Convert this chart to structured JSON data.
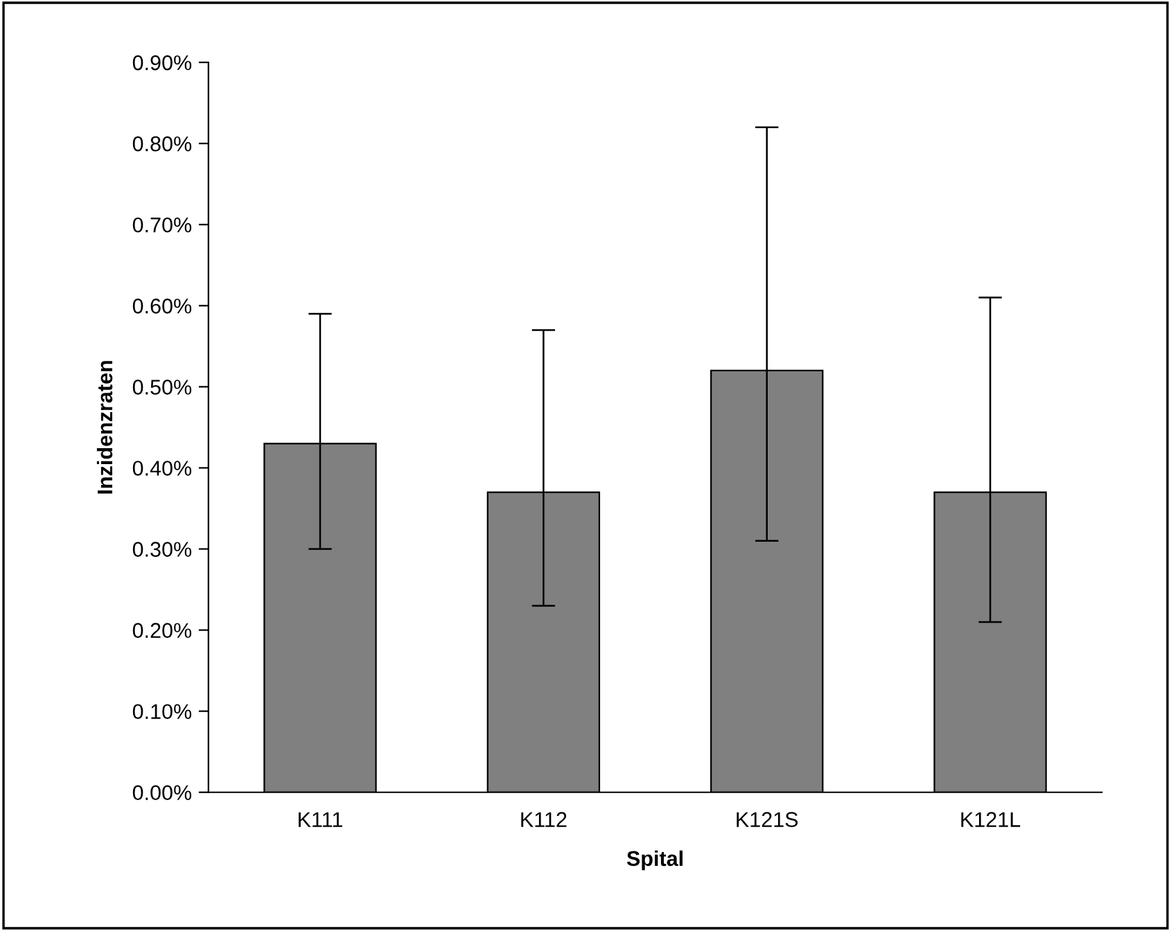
{
  "chart_data": {
    "type": "bar",
    "xlabel": "Spital",
    "ylabel": "Inzidenzraten",
    "categories": [
      "K111",
      "K112",
      "K121S",
      "K121L"
    ],
    "values": [
      0.43,
      0.37,
      0.52,
      0.37
    ],
    "errors": [
      [
        0.3,
        0.59
      ],
      [
        0.23,
        0.57
      ],
      [
        0.31,
        0.82
      ],
      [
        0.21,
        0.61
      ]
    ],
    "color": "#808080",
    "ylim": [
      0,
      0.9
    ],
    "yticks": [
      {
        "value": 0,
        "label": "0.00%"
      },
      {
        "value": 0.1,
        "label": "0.10%"
      },
      {
        "value": 0.2,
        "label": "0.20%"
      },
      {
        "value": 0.3,
        "label": "0.30%"
      },
      {
        "value": 0.4,
        "label": "0.40%"
      },
      {
        "value": 0.5,
        "label": "0.50%"
      },
      {
        "value": 0.6,
        "label": "0.60%"
      },
      {
        "value": 0.7,
        "label": "0.70%"
      },
      {
        "value": 0.8,
        "label": "0.80%"
      },
      {
        "value": 0.9,
        "label": "0.90%"
      }
    ],
    "grid": false,
    "legend": false
  }
}
